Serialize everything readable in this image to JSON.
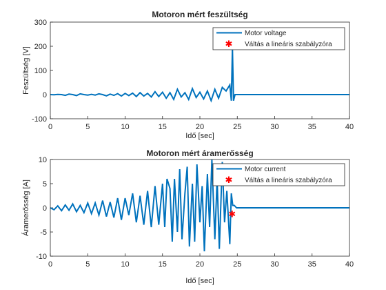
{
  "chart_data": [
    {
      "type": "line",
      "title": "Motoron mért feszültség",
      "xlabel": "Idő [sec]",
      "ylabel": "Feszültség [V]",
      "xlim": [
        0,
        40
      ],
      "ylim": [
        -100,
        300
      ],
      "xticks": [
        0,
        5,
        10,
        15,
        20,
        25,
        30,
        35,
        40
      ],
      "yticks": [
        -100,
        0,
        100,
        200,
        300
      ],
      "grid": false,
      "legend_position": "top-right",
      "series": [
        {
          "name": "Motor voltage",
          "color": "#0072BD",
          "x": [
            0,
            0.5,
            1,
            1.5,
            2,
            2.5,
            3,
            3.5,
            4,
            4.5,
            5,
            5.5,
            6,
            6.5,
            7,
            7.5,
            8,
            8.5,
            9,
            9.5,
            10,
            10.5,
            11,
            11.5,
            12,
            12.5,
            13,
            13.5,
            14,
            14.5,
            15,
            15.5,
            16,
            16.5,
            17,
            17.5,
            18,
            18.5,
            19,
            19.5,
            20,
            20.5,
            21,
            21.5,
            22,
            22.5,
            23,
            23.5,
            24,
            24.2,
            24.35,
            24.5,
            24.7,
            25,
            26,
            28,
            30,
            35,
            40
          ],
          "values": [
            0,
            -1,
            1,
            0,
            -3,
            2,
            0,
            -4,
            3,
            0,
            -2,
            1,
            -2,
            3,
            0,
            -5,
            2,
            -3,
            4,
            -6,
            5,
            -4,
            6,
            -8,
            8,
            -6,
            5,
            -10,
            12,
            -8,
            10,
            -15,
            8,
            -20,
            22,
            -10,
            8,
            -20,
            25,
            -12,
            10,
            -18,
            15,
            -25,
            22,
            -15,
            30,
            15,
            40,
            -25,
            195,
            -25,
            0,
            0,
            0,
            0,
            0,
            0,
            0
          ]
        },
        {
          "name": "Váltás a lineáris szabályzóra",
          "color": "#FF0000",
          "marker": "*",
          "x": [],
          "values": []
        }
      ]
    },
    {
      "type": "line",
      "title": "Motoron mért áramerősség",
      "xlabel": "Idő [sec]",
      "ylabel": "Áramerősség [A]",
      "xlim": [
        0,
        40
      ],
      "ylim": [
        -10,
        10
      ],
      "xticks": [
        0,
        5,
        10,
        15,
        20,
        25,
        30,
        35,
        40
      ],
      "yticks": [
        -10,
        -5,
        0,
        5,
        10
      ],
      "grid": false,
      "legend_position": "top-right",
      "series": [
        {
          "name": "Motor current",
          "color": "#0072BD",
          "x": [
            0,
            0.5,
            1,
            1.5,
            2,
            2.5,
            3,
            3.5,
            4,
            4.5,
            5,
            5.5,
            6,
            6.5,
            7,
            7.5,
            8,
            8.5,
            9,
            9.5,
            10,
            10.5,
            11,
            11.5,
            12,
            12.5,
            13,
            13.5,
            14,
            14.5,
            15,
            15.3,
            15.6,
            16,
            16.3,
            16.6,
            17,
            17.3,
            17.6,
            18,
            18.3,
            18.6,
            19,
            19.3,
            19.6,
            20,
            20.3,
            20.6,
            21,
            21.3,
            21.6,
            22,
            22.3,
            22.6,
            23,
            23.3,
            23.6,
            24,
            24.2,
            24.4,
            24.6,
            24.9,
            25.3,
            26,
            28,
            30,
            35,
            40
          ],
          "values": [
            0,
            -0.4,
            0.4,
            -0.6,
            0.6,
            -0.5,
            0.8,
            -0.8,
            0.5,
            -1,
            1,
            -1.2,
            1,
            -1.5,
            1.5,
            -1.8,
            1.2,
            -2,
            2,
            -2.5,
            2,
            -1.5,
            3,
            -3,
            2.5,
            -3.5,
            3.5,
            -4,
            4.5,
            -3.5,
            5,
            -4,
            6,
            4,
            -7,
            6,
            -5,
            8,
            -6.5,
            3,
            8.5,
            -8,
            5,
            -7,
            9,
            -3,
            4.5,
            -9,
            7,
            -4,
            10,
            -6.5,
            6,
            -8.5,
            9.5,
            -3,
            3.5,
            -7.5,
            3,
            0.5,
            0.5,
            0,
            0,
            0,
            0,
            0,
            0,
            0
          ]
        },
        {
          "name": "Váltás a lineáris szabályzóra",
          "color": "#FF0000",
          "marker": "*",
          "x": [
            24.3
          ],
          "values": [
            -1.2
          ]
        }
      ]
    }
  ]
}
